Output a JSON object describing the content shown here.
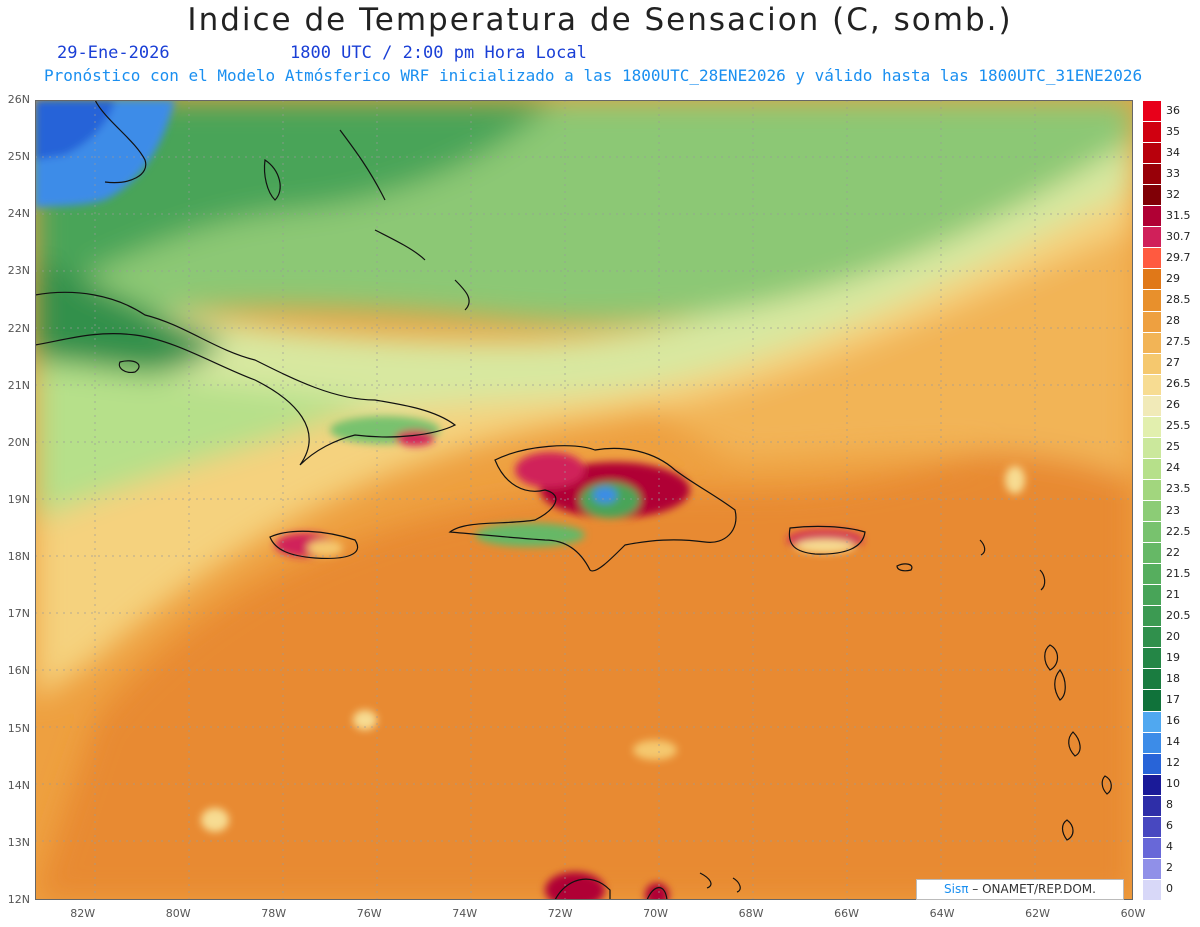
{
  "header": {
    "title": "Indice de Temperatura de Sensacion (C, somb.)",
    "date": "29-Ene-2026",
    "time": "1800 UTC / 2:00 pm Hora Local",
    "forecast": "Pronóstico con el Modelo Atmósferico WRF inicializado a las 1800UTC_28ENE2026 y válido hasta las  1800UTC_31ENE2026"
  },
  "map": {
    "lat_labels": [
      "26N",
      "25N",
      "24N",
      "23N",
      "22N",
      "21N",
      "20N",
      "19N",
      "18N",
      "17N",
      "16N",
      "15N",
      "14N",
      "13N",
      "12N"
    ],
    "lon_labels": [
      "82W",
      "80W",
      "78W",
      "76W",
      "74W",
      "72W",
      "70W",
      "68W",
      "66W",
      "64W",
      "62W",
      "60W"
    ],
    "lat_range": [
      12,
      26
    ],
    "lon_range": [
      -83,
      -60
    ],
    "grid": true
  },
  "legend": {
    "labels": [
      "36",
      "35",
      "34",
      "33",
      "32",
      "31.5",
      "30.7",
      "29.7",
      "29",
      "28.5",
      "28",
      "27.5",
      "27",
      "26.5",
      "26",
      "25.5",
      "25",
      "24",
      "23.5",
      "23",
      "22.5",
      "22",
      "21.5",
      "21",
      "20.5",
      "20",
      "19",
      "18",
      "17",
      "16",
      "14",
      "12",
      "10",
      "8",
      "6",
      "4",
      "2",
      "0"
    ],
    "colors": [
      "#e8001a",
      "#d00010",
      "#b8000c",
      "#980008",
      "#800006",
      "#b00034",
      "#d0205a",
      "#ff5a40",
      "#e07818",
      "#e8902c",
      "#eea040",
      "#f2b456",
      "#f5c86e",
      "#f7dc92",
      "#f1eab8",
      "#e2efae",
      "#cbe89c",
      "#b6e08a",
      "#a2d67e",
      "#8ccc76",
      "#78c26e",
      "#66b866",
      "#56ae5e",
      "#48a458",
      "#3c9a52",
      "#30904c",
      "#248646",
      "#1a7c40",
      "#10723a",
      "#50a8f0",
      "#3c8ce8",
      "#2864d8",
      "#1a1a98",
      "#2e2ea8",
      "#4848c0",
      "#6868d8",
      "#9090e8",
      "#d8d8f8"
    ]
  },
  "credit": {
    "brand": "Sisπ",
    "text": " – ONAMET/REP.DOM."
  }
}
